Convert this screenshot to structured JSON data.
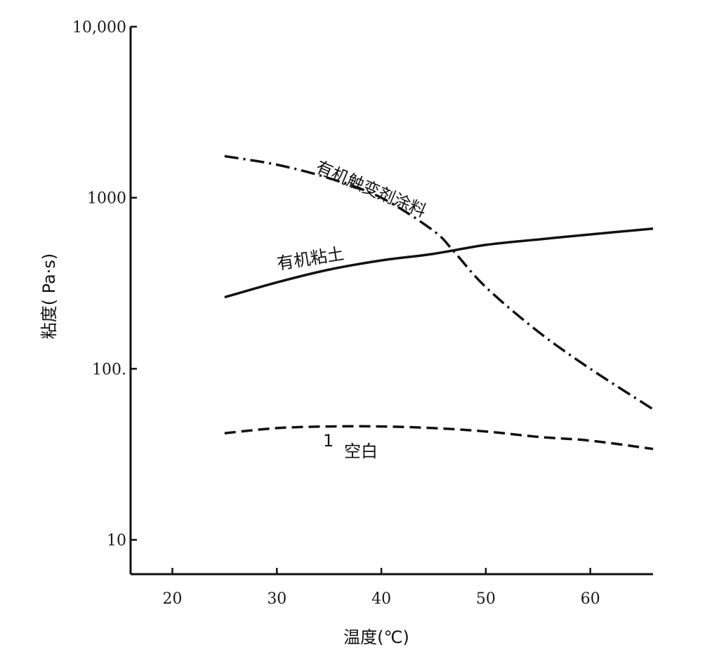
{
  "chart_data": {
    "type": "line",
    "xlabel": "温度(℃)",
    "ylabel": "粘度(  Pa·s)",
    "xlim": [
      16,
      66
    ],
    "ylim": [
      6.3,
      10000
    ],
    "yscale": "log",
    "x_ticks": [
      20,
      30,
      40,
      50,
      60
    ],
    "x_tick_labels": [
      "20",
      "30",
      "40",
      "50",
      "60"
    ],
    "y_ticks": [
      10,
      100,
      1000,
      10000
    ],
    "y_tick_labels": [
      "10",
      "100.",
      "1000",
      "10,000"
    ],
    "grid": false,
    "series": [
      {
        "name": "有机触变剂涂料",
        "style": "dash-dot",
        "x": [
          25,
          30,
          35,
          40,
          45,
          47,
          50,
          55,
          60,
          66
        ],
        "y": [
          1750,
          1560,
          1300,
          1000,
          640,
          480,
          300,
          165,
          100,
          58
        ]
      },
      {
        "name": "有机粘土",
        "style": "solid",
        "x": [
          25,
          30,
          35,
          40,
          45,
          50,
          55,
          60,
          66
        ],
        "y": [
          262,
          320,
          380,
          430,
          470,
          530,
          570,
          610,
          660
        ]
      },
      {
        "name": "空白",
        "marker": "1",
        "style": "dashed",
        "x": [
          25,
          30,
          35,
          40,
          45,
          50,
          55,
          60,
          66
        ],
        "y": [
          42,
          45,
          46,
          46,
          45,
          43,
          40,
          38,
          34
        ]
      }
    ],
    "colors": {
      "line": "#111111",
      "axis": "#111111"
    }
  }
}
